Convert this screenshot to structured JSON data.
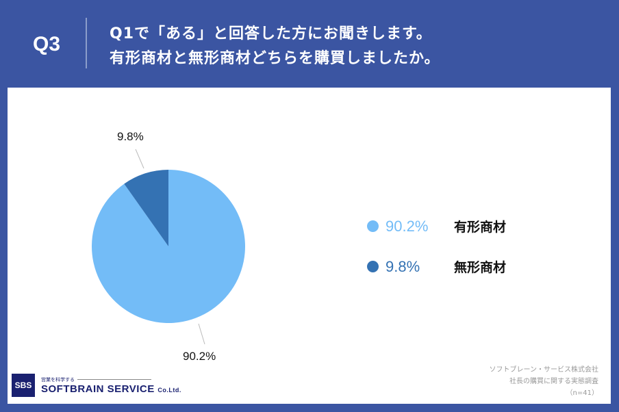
{
  "header": {
    "question_number": "Q3",
    "question_line1": "Q1で「ある」と回答した方にお聞きします。",
    "question_line2": "有形商材と無形商材どちらを購買しましたか。"
  },
  "colors": {
    "background": "#3b55a2",
    "tangible": "#73bcf7",
    "intangible": "#3472b3"
  },
  "chart_data": {
    "type": "pie",
    "title": "有形商材と無形商材どちらを購買しましたか。",
    "categories": [
      "有形商材",
      "無形商材"
    ],
    "values": [
      90.2,
      9.8
    ],
    "unit": "%",
    "data_labels": [
      "90.2%",
      "9.8%"
    ],
    "legend_position": "right",
    "n": 41
  },
  "legend": {
    "items": [
      {
        "pct": "90.2%",
        "label": "有形商材"
      },
      {
        "pct": "9.8%",
        "label": "無形商材"
      }
    ]
  },
  "labels": {
    "tangible_pct": "90.2%",
    "intangible_pct": "9.8%"
  },
  "footer": {
    "logo_mark": "SBS",
    "tagline": "営業を科学する",
    "company": "SOFTBRAIN SERVICE",
    "company_suffix": "Co.Ltd.",
    "source_line1": "ソフトブレーン・サービス株式会社",
    "source_line2": "社長の購買に関する実態調査",
    "source_line3": "（n=41）"
  }
}
